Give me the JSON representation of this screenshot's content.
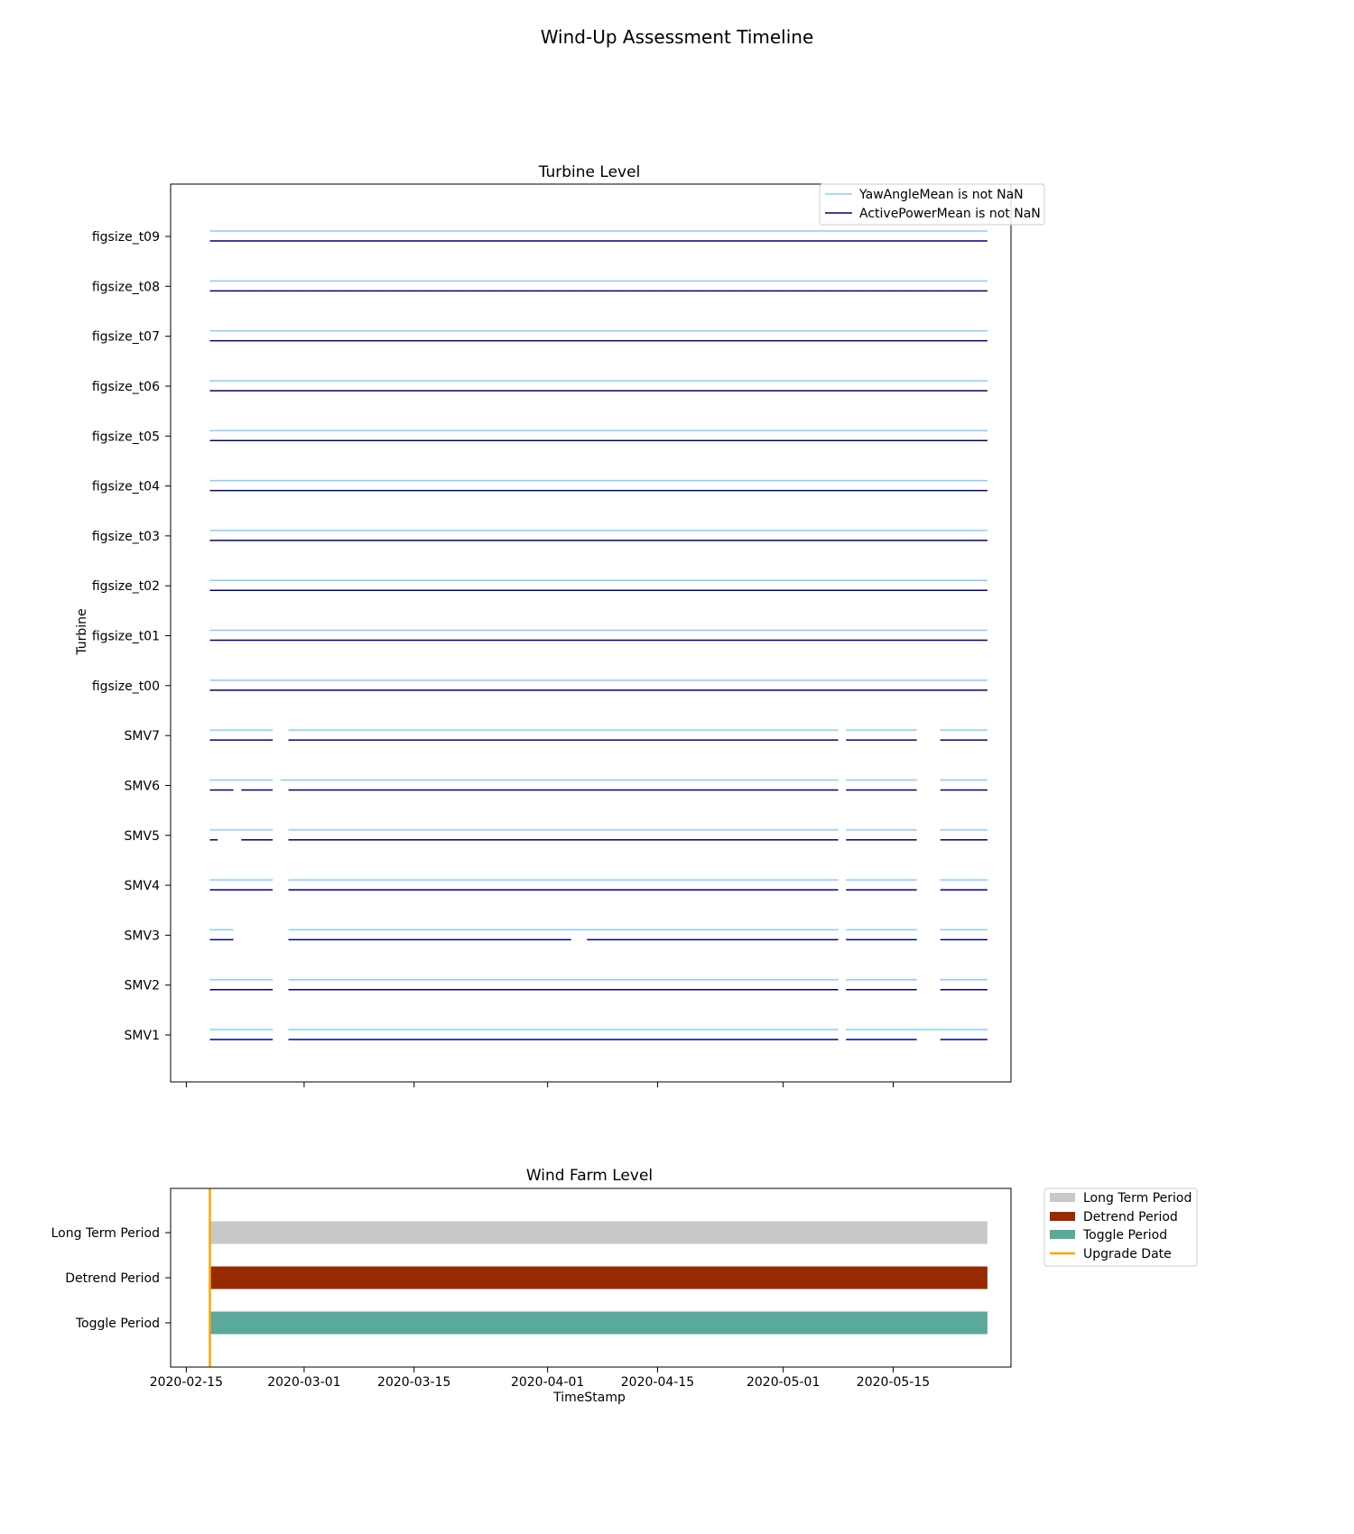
{
  "figure": {
    "suptitle": "Wind-Up Assessment Timeline"
  },
  "colors": {
    "yaw": "#87cefa",
    "power": "#000080",
    "long_term": "#c8c8c8",
    "detrend": "#982a00",
    "toggle": "#5aa99a",
    "upgrade": "#ffa500"
  },
  "chart_data": [
    {
      "type": "timeline",
      "title": "Turbine Level",
      "ylabel": "Turbine",
      "xlim": [
        "2020-02-13",
        "2020-05-30"
      ],
      "categories": [
        "SMV1",
        "SMV2",
        "SMV3",
        "SMV4",
        "SMV5",
        "SMV6",
        "SMV7",
        "figsize_t00",
        "figsize_t01",
        "figsize_t02",
        "figsize_t03",
        "figsize_t04",
        "figsize_t05",
        "figsize_t06",
        "figsize_t07",
        "figsize_t08",
        "figsize_t09"
      ],
      "legend": {
        "placement": "top-right",
        "entries": [
          "YawAngleMean is not NaN",
          "ActivePowerMean is not NaN"
        ]
      },
      "series": [
        {
          "name": "YawAngleMean is not NaN",
          "segments": {
            "SMV1": [
              [
                "2020-02-18",
                "2020-02-26"
              ],
              [
                "2020-02-28",
                "2020-05-08"
              ],
              [
                "2020-05-09",
                "2020-05-27"
              ]
            ],
            "SMV2": [
              [
                "2020-02-18",
                "2020-02-26"
              ],
              [
                "2020-02-28",
                "2020-05-08"
              ],
              [
                "2020-05-09",
                "2020-05-18"
              ],
              [
                "2020-05-21",
                "2020-05-27"
              ]
            ],
            "SMV3": [
              [
                "2020-02-18",
                "2020-02-21"
              ],
              [
                "2020-02-28",
                "2020-05-08"
              ],
              [
                "2020-05-09",
                "2020-05-18"
              ],
              [
                "2020-05-21",
                "2020-05-27"
              ]
            ],
            "SMV4": [
              [
                "2020-02-18",
                "2020-02-26"
              ],
              [
                "2020-02-28",
                "2020-05-08"
              ],
              [
                "2020-05-09",
                "2020-05-18"
              ],
              [
                "2020-05-21",
                "2020-05-27"
              ]
            ],
            "SMV5": [
              [
                "2020-02-18",
                "2020-02-26"
              ],
              [
                "2020-02-28",
                "2020-05-08"
              ],
              [
                "2020-05-09",
                "2020-05-18"
              ],
              [
                "2020-05-21",
                "2020-05-27"
              ]
            ],
            "SMV6": [
              [
                "2020-02-18",
                "2020-02-26"
              ],
              [
                "2020-02-27",
                "2020-05-08"
              ],
              [
                "2020-05-09",
                "2020-05-18"
              ],
              [
                "2020-05-21",
                "2020-05-27"
              ]
            ],
            "SMV7": [
              [
                "2020-02-18",
                "2020-02-26"
              ],
              [
                "2020-02-28",
                "2020-05-08"
              ],
              [
                "2020-05-09",
                "2020-05-18"
              ],
              [
                "2020-05-21",
                "2020-05-27"
              ]
            ],
            "figsize_t00": [
              [
                "2020-02-18",
                "2020-05-27"
              ]
            ],
            "figsize_t01": [
              [
                "2020-02-18",
                "2020-05-27"
              ]
            ],
            "figsize_t02": [
              [
                "2020-02-18",
                "2020-05-27"
              ]
            ],
            "figsize_t03": [
              [
                "2020-02-18",
                "2020-05-27"
              ]
            ],
            "figsize_t04": [
              [
                "2020-02-18",
                "2020-05-27"
              ]
            ],
            "figsize_t05": [
              [
                "2020-02-18",
                "2020-05-27"
              ]
            ],
            "figsize_t06": [
              [
                "2020-02-18",
                "2020-05-27"
              ]
            ],
            "figsize_t07": [
              [
                "2020-02-18",
                "2020-05-27"
              ]
            ],
            "figsize_t08": [
              [
                "2020-02-18",
                "2020-05-27"
              ]
            ],
            "figsize_t09": [
              [
                "2020-02-18",
                "2020-05-27"
              ]
            ]
          }
        },
        {
          "name": "ActivePowerMean is not NaN",
          "segments": {
            "SMV1": [
              [
                "2020-02-18",
                "2020-02-26"
              ],
              [
                "2020-02-28",
                "2020-05-08"
              ],
              [
                "2020-05-09",
                "2020-05-18"
              ],
              [
                "2020-05-21",
                "2020-05-27"
              ]
            ],
            "SMV2": [
              [
                "2020-02-18",
                "2020-02-26"
              ],
              [
                "2020-02-28",
                "2020-05-08"
              ],
              [
                "2020-05-09",
                "2020-05-18"
              ],
              [
                "2020-05-21",
                "2020-05-27"
              ]
            ],
            "SMV3": [
              [
                "2020-02-18",
                "2020-02-21"
              ],
              [
                "2020-02-28",
                "2020-04-04"
              ],
              [
                "2020-04-06",
                "2020-05-08"
              ],
              [
                "2020-05-09",
                "2020-05-18"
              ],
              [
                "2020-05-21",
                "2020-05-27"
              ]
            ],
            "SMV4": [
              [
                "2020-02-18",
                "2020-02-26"
              ],
              [
                "2020-02-28",
                "2020-05-08"
              ],
              [
                "2020-05-09",
                "2020-05-18"
              ],
              [
                "2020-05-21",
                "2020-05-27"
              ]
            ],
            "SMV5": [
              [
                "2020-02-18",
                "2020-02-19"
              ],
              [
                "2020-02-22",
                "2020-02-26"
              ],
              [
                "2020-02-28",
                "2020-05-08"
              ],
              [
                "2020-05-09",
                "2020-05-18"
              ],
              [
                "2020-05-21",
                "2020-05-27"
              ]
            ],
            "SMV6": [
              [
                "2020-02-18",
                "2020-02-21"
              ],
              [
                "2020-02-22",
                "2020-02-26"
              ],
              [
                "2020-02-28",
                "2020-05-08"
              ],
              [
                "2020-05-09",
                "2020-05-18"
              ],
              [
                "2020-05-21",
                "2020-05-27"
              ]
            ],
            "SMV7": [
              [
                "2020-02-18",
                "2020-02-26"
              ],
              [
                "2020-02-28",
                "2020-05-08"
              ],
              [
                "2020-05-09",
                "2020-05-18"
              ],
              [
                "2020-05-21",
                "2020-05-27"
              ]
            ],
            "figsize_t00": [
              [
                "2020-02-18",
                "2020-05-27"
              ]
            ],
            "figsize_t01": [
              [
                "2020-02-18",
                "2020-05-27"
              ]
            ],
            "figsize_t02": [
              [
                "2020-02-18",
                "2020-05-27"
              ]
            ],
            "figsize_t03": [
              [
                "2020-02-18",
                "2020-05-27"
              ]
            ],
            "figsize_t04": [
              [
                "2020-02-18",
                "2020-05-27"
              ]
            ],
            "figsize_t05": [
              [
                "2020-02-18",
                "2020-05-27"
              ]
            ],
            "figsize_t06": [
              [
                "2020-02-18",
                "2020-05-27"
              ]
            ],
            "figsize_t07": [
              [
                "2020-02-18",
                "2020-05-27"
              ]
            ],
            "figsize_t08": [
              [
                "2020-02-18",
                "2020-05-27"
              ]
            ],
            "figsize_t09": [
              [
                "2020-02-18",
                "2020-05-27"
              ]
            ]
          }
        }
      ],
      "grid": false
    },
    {
      "type": "timeline",
      "title": "Wind Farm Level",
      "xlabel": "TimeStamp",
      "xlim": [
        "2020-02-13",
        "2020-05-30"
      ],
      "xticks": [
        "2020-02-15",
        "2020-03-01",
        "2020-03-15",
        "2020-04-01",
        "2020-04-15",
        "2020-05-01",
        "2020-05-15"
      ],
      "categories": [
        "Long Term Period",
        "Detrend Period",
        "Toggle Period"
      ],
      "periods": [
        {
          "name": "Long Term Period",
          "start": "2020-02-18",
          "end": "2020-05-27"
        },
        {
          "name": "Detrend Period",
          "start": "2020-02-18",
          "end": "2020-05-27"
        },
        {
          "name": "Toggle Period",
          "start": "2020-02-18",
          "end": "2020-05-27"
        }
      ],
      "upgrade_date": "2020-02-18",
      "legend": {
        "placement": "outside-right",
        "entries": [
          "Long Term Period",
          "Detrend Period",
          "Toggle Period",
          "Upgrade Date"
        ]
      },
      "grid": false
    }
  ]
}
